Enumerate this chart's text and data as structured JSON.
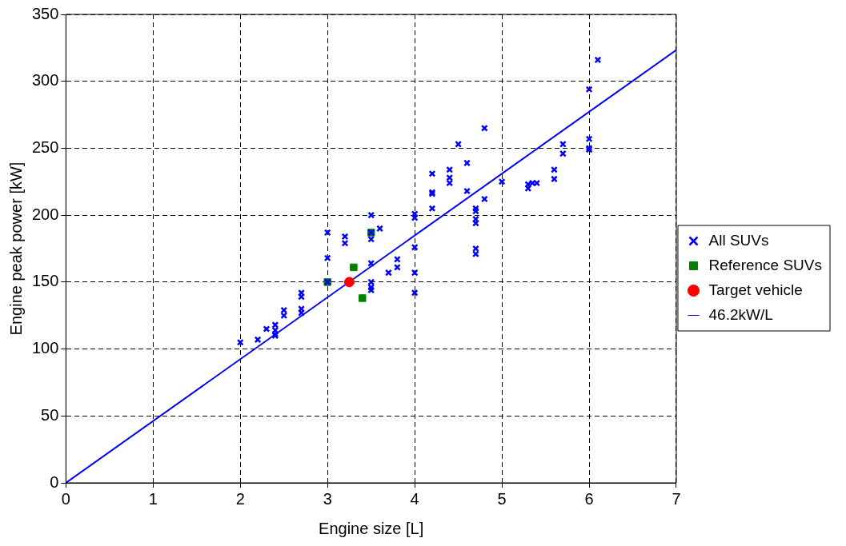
{
  "chart_data": {
    "type": "scatter",
    "xlabel": "Engine size [L]",
    "ylabel": "Engine peak power [kW]",
    "xlim": [
      0,
      7
    ],
    "xticks": [
      0,
      1,
      2,
      3,
      4,
      5,
      6,
      7
    ],
    "ylim": [
      0,
      350
    ],
    "yticks": [
      0,
      50,
      100,
      150,
      200,
      250,
      300,
      350
    ],
    "grid": true,
    "legend": "right",
    "series": [
      {
        "name": "All SUVs",
        "color": "#0000ff",
        "marker": "cross",
        "x": [
          2.0,
          2.2,
          2.3,
          2.4,
          2.4,
          2.4,
          2.4,
          2.5,
          2.5,
          2.7,
          2.7,
          2.7,
          2.7,
          3.0,
          3.0,
          3.0,
          3.2,
          3.2,
          3.5,
          3.5,
          3.5,
          3.5,
          3.5,
          3.5,
          3.5,
          3.6,
          3.7,
          3.8,
          3.8,
          4.0,
          4.0,
          4.0,
          4.0,
          4.0,
          4.2,
          4.2,
          4.2,
          4.2,
          4.4,
          4.4,
          4.4,
          4.5,
          4.6,
          4.6,
          4.7,
          4.7,
          4.7,
          4.7,
          4.7,
          4.7,
          4.8,
          4.8,
          5.0,
          5.3,
          5.3,
          5.35,
          5.4,
          5.6,
          5.6,
          5.7,
          5.7,
          6.0,
          6.0,
          6.0,
          6.0,
          6.1
        ],
        "values": [
          105,
          107,
          115,
          118,
          114,
          111,
          110,
          129,
          125,
          142,
          139,
          130,
          127,
          187,
          168,
          150,
          184,
          179,
          200,
          187,
          182,
          164,
          150,
          146,
          144,
          190,
          157,
          167,
          161,
          201,
          198,
          176,
          157,
          142,
          231,
          217,
          216,
          205,
          234,
          228,
          224,
          253,
          239,
          218,
          205,
          203,
          197,
          194,
          175,
          171,
          265,
          212,
          225,
          223,
          220,
          224,
          224,
          234,
          227,
          253,
          246,
          294,
          257,
          250,
          249,
          316
        ]
      },
      {
        "name": "Reference SUVs",
        "color": "#008000",
        "marker": "square",
        "x": [
          3.0,
          3.3,
          3.4,
          3.5
        ],
        "values": [
          150,
          161,
          138,
          187
        ]
      },
      {
        "name": "Target vehicle",
        "color": "#ff0000",
        "marker": "circle",
        "x": [
          3.25
        ],
        "values": [
          150
        ]
      },
      {
        "name": "46.2kW/L",
        "color": "#0000ff",
        "type": "line",
        "marker": "none",
        "line_style": "solid",
        "x": [
          0,
          7
        ],
        "values": [
          0,
          323.4
        ]
      }
    ]
  }
}
